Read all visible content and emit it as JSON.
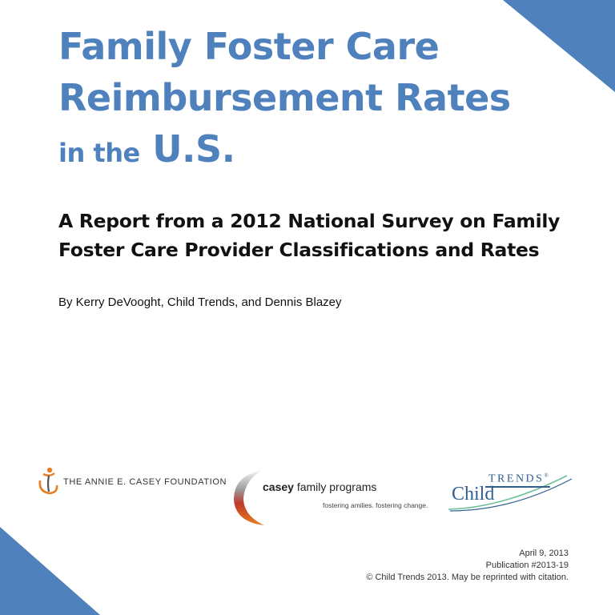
{
  "title": {
    "line1": "Family Foster Care",
    "line2": "Reimbursement Rates",
    "line3_prefix": "in the",
    "line3_main": "U.S."
  },
  "subtitle": {
    "line1": "A Report from a 2012 National Survey on Family",
    "line2": "Foster Care Provider Classifications and Rates"
  },
  "byline": "By Kerry DeVooght, Child Trends, and Dennis Blazey",
  "logos": {
    "aecf": {
      "name": "THE ANNIE E. CASEY FOUNDATION",
      "icon": "aecf-figure-icon"
    },
    "casey": {
      "name_bold": "casey",
      "name_rest": " family programs",
      "tagline": "fostering amilies. fostering change.",
      "icon": "casey-swoosh-icon"
    },
    "child_trends": {
      "child": "Child",
      "trends": "TRENDS",
      "mark": "®"
    }
  },
  "footer": {
    "date": "April 9, 2013",
    "publication": "Publication #2013-19",
    "copyright": "© Child Trends 2013. May be reprinted with citation."
  },
  "colors": {
    "accent_blue": "#4f81bd",
    "corner_blue": "#4f81bd",
    "child_trends_blue": "#2f5f8f",
    "casey_red": "#c0392b",
    "aecf_orange": "#e67e22"
  }
}
